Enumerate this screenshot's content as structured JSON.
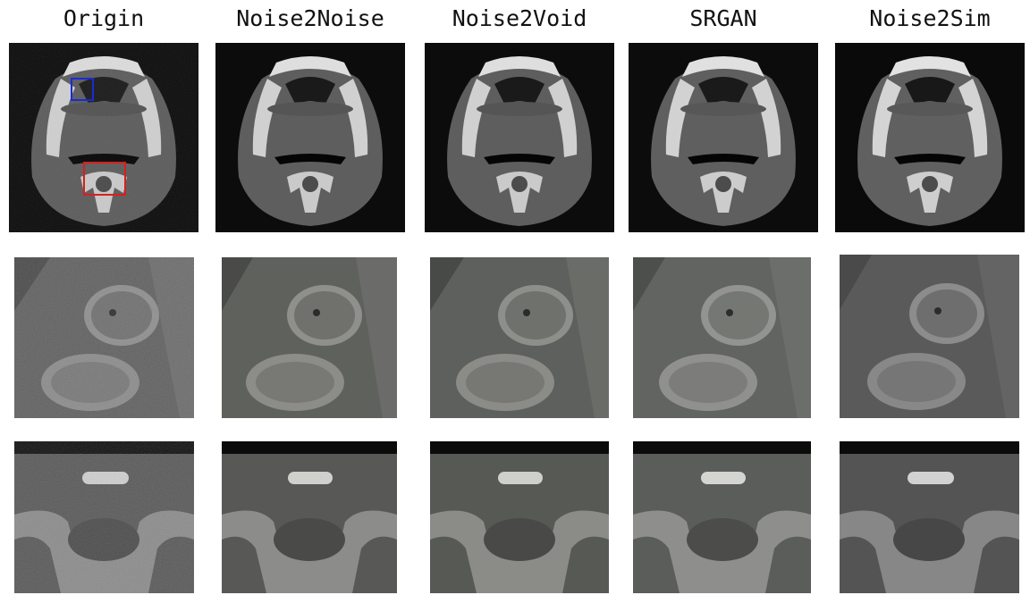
{
  "figure": {
    "columns": [
      {
        "title": "Origin",
        "method": "origin"
      },
      {
        "title": "Noise2Noise",
        "method": "noise2noise"
      },
      {
        "title": "Noise2Void",
        "method": "noise2void"
      },
      {
        "title": "SRGAN",
        "method": "srgan"
      },
      {
        "title": "Noise2Sim",
        "method": "noise2sim"
      }
    ],
    "rows": [
      "full-ct-slice",
      "tooth-zoom",
      "vertebra-zoom"
    ],
    "roi_boxes": [
      {
        "name": "tooth-roi",
        "color": "#1a2bd6"
      },
      {
        "name": "vertebra-roi",
        "color": "#d81e1e"
      }
    ],
    "colors": {
      "background": "#ffffff",
      "panel_black": "#0a0a0a",
      "soft_tissue": "#5a5a5a",
      "bone": "#cfcfcf"
    }
  }
}
